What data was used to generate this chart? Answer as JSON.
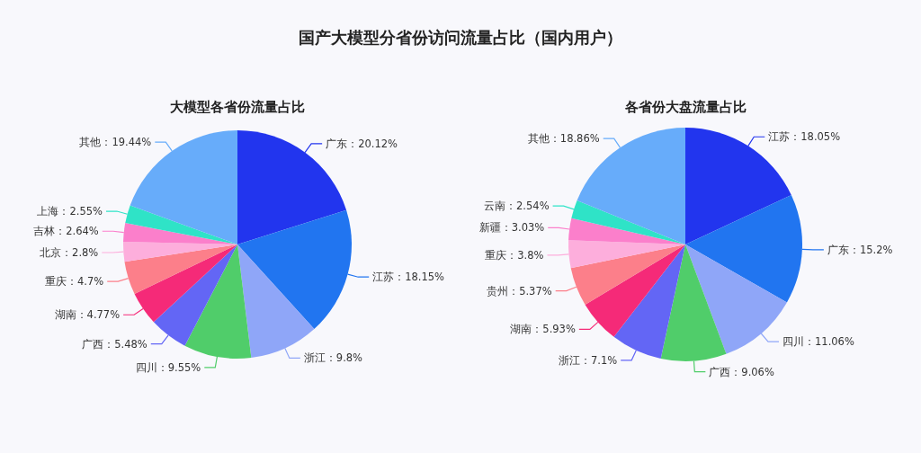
{
  "chart_data": [
    {
      "type": "pie",
      "title": "国产大模型分省份访问流量占比（国内用户）",
      "subtitle": "大模型各省份流量占比",
      "categories": [
        "广东",
        "江苏",
        "浙江",
        "四川",
        "广西",
        "湖南",
        "重庆",
        "北京",
        "吉林",
        "上海",
        "其他"
      ],
      "values": [
        20.12,
        18.15,
        9.8,
        9.55,
        5.48,
        4.77,
        4.7,
        2.8,
        2.64,
        2.55,
        19.44
      ],
      "colors": [
        "#2235ee",
        "#2175f0",
        "#8fa6f8",
        "#50cd6a",
        "#6366f5",
        "#f52a78",
        "#fc7f8a",
        "#fdaedc",
        "#fb7fcb",
        "#2fe3c7",
        "#67acfa"
      ],
      "value_labels": [
        "：20.12%",
        "：18.15%",
        "：9.8%",
        "：9.55%",
        "：5.48%",
        "：4.77%",
        "：4.7%",
        "：2.8%",
        "：2.64%",
        "：2.55%",
        "：19.44%"
      ]
    },
    {
      "type": "pie",
      "title": "各省份大盘流量占比",
      "categories": [
        "江苏",
        "广东",
        "四川",
        "广西",
        "浙江",
        "湖南",
        "贵州",
        "重庆",
        "新疆",
        "云南",
        "其他"
      ],
      "values": [
        18.05,
        15.2,
        11.06,
        9.06,
        7.1,
        5.93,
        5.37,
        3.8,
        3.03,
        2.54,
        18.86
      ],
      "colors": [
        "#2235ee",
        "#2175f0",
        "#8fa6f8",
        "#50cd6a",
        "#6366f5",
        "#f52a78",
        "#fc7f8a",
        "#fdaedc",
        "#fb7fcb",
        "#2fe3c7",
        "#67acfa"
      ],
      "value_labels": [
        "：18.05%",
        "：15.2%",
        "：11.06%",
        "：9.06%",
        "：7.1%",
        "：5.93%",
        "：5.37%",
        "：3.8%",
        "：3.03%",
        "：2.54%",
        "：18.86%"
      ]
    }
  ]
}
